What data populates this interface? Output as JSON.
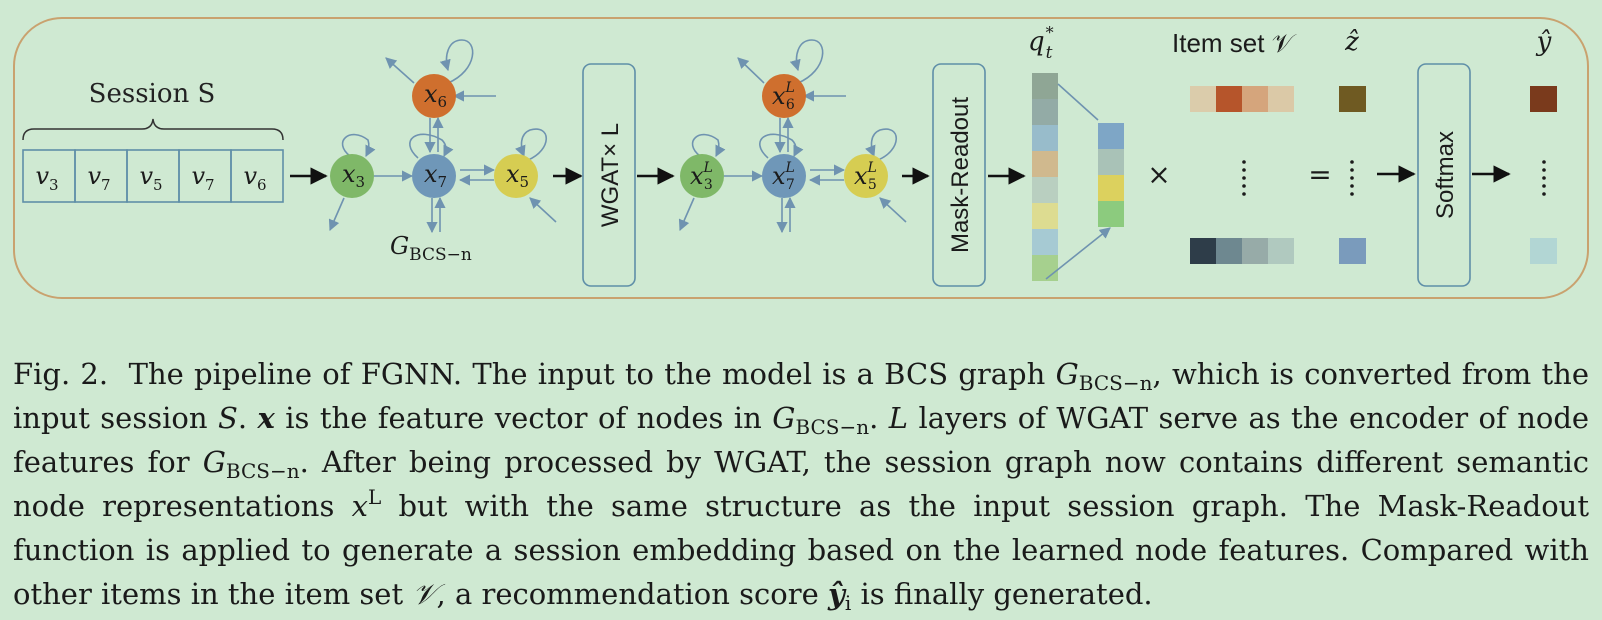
{
  "figure": {
    "session_title": "Session S",
    "session_items": [
      "v3",
      "v7",
      "v5",
      "v7",
      "v6"
    ],
    "graph_label": "G",
    "graph_label_sub": "BCS−n",
    "nodes_input": [
      {
        "id": "x6",
        "base": "x",
        "sub": "6",
        "color": "#cf6f2e"
      },
      {
        "id": "x3",
        "base": "x",
        "sub": "3",
        "color": "#7fb868"
      },
      {
        "id": "x7",
        "base": "x",
        "sub": "7",
        "color": "#6f97b8"
      },
      {
        "id": "x5",
        "base": "x",
        "sub": "5",
        "color": "#d6cd52"
      }
    ],
    "nodes_output_sup": "L",
    "wgat_label": "WGAT× L",
    "readout_label": "Mask-Readout",
    "softmax_label": "Softmax",
    "session_embedding_label": "q",
    "session_embedding_sub": "t",
    "session_embedding_sup": "*",
    "item_set_label": "Item set 𝒱",
    "z_hat_label": "ẑ",
    "y_hat_label": "ŷ",
    "times_symbol": "×",
    "equals_symbol": "=",
    "colors": {
      "panel_border": "#c9a26f",
      "box_border": "#5f8fa8",
      "session_border": "#5f8fa8",
      "arrow": "#6f93b0",
      "q_column": [
        "#8fa695",
        "#93aba6",
        "#98bccb",
        "#d0b98e",
        "#b9cfc0",
        "#dddc91",
        "#a6cad3",
        "#a6d08e"
      ],
      "projected_column": [
        "#7ea6c6",
        "#a9c2b7",
        "#dcd15e",
        "#8ccb7e"
      ],
      "item_row_top": [
        "#dbccab",
        "#b6552b",
        "#d5a57c",
        "#dbc9a7"
      ],
      "item_row_bottom": [
        "#2e3d49",
        "#6e8890",
        "#97aba8",
        "#b0c9bf"
      ],
      "z_top": "#6f5a22",
      "z_bottom": "#7a9bbc",
      "y_top": "#7a3a1c",
      "y_bottom": "#b2d6d4"
    }
  },
  "caption": {
    "fig_label": "Fig. 2.",
    "t1": "The pipeline of FGNN. The input to the model is a BCS graph",
    "g": "G",
    "g_sub": "BCS−n",
    "t2": ", which is converted from the input session",
    "s": "S",
    "t3": ".",
    "x": "x",
    "t4": "is the feature vector of nodes in",
    "t5": ".",
    "l": "L",
    "t6": "layers of WGAT serve as the encoder of node features for",
    "t7": ". After being processed by WGAT, the session graph now contains different semantic node representations",
    "xl_base": "x",
    "xl_sup": "L",
    "t8": "but with the same structure as the input session graph. The Mask-Readout function is applied to generate a session embedding based on the learned node features. Compared with other items in the item set",
    "v": "𝒱",
    "t9": ", a recommendation score",
    "y": "ŷ",
    "y_sub": "i",
    "t10": "is finally generated."
  }
}
